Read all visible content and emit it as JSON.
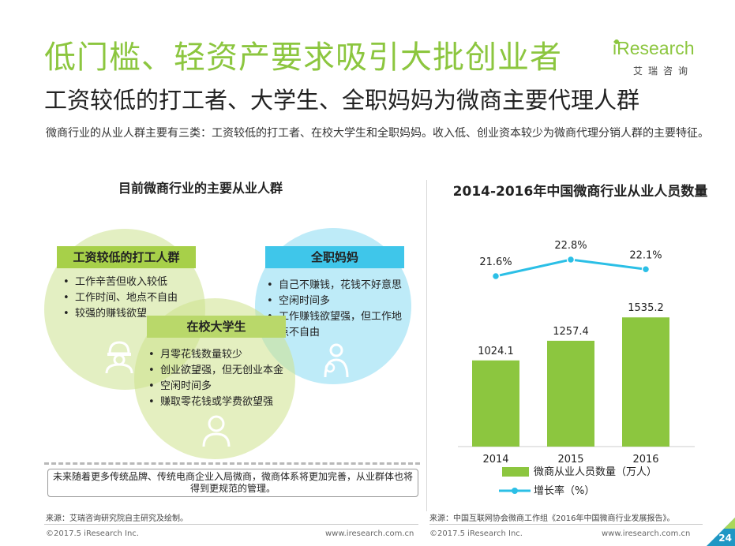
{
  "header": {
    "title": "低门槛、轻资产要求吸引大批创业者",
    "subtitle": "工资较低的打工者、大学生、全职妈妈为微商主要代理人群",
    "brand_en": "iResearch",
    "brand_cn": "艾瑞咨询"
  },
  "intro": "微商行业的从业人群主要有三类：工资较低的打工者、在校大学生和全职妈妈。收入低、创业资本较少为微商代理分销人群的主要特征。",
  "left_panel": {
    "title": "目前微商行业的主要从业人群",
    "groups": [
      {
        "name": "工资较低的打工人群",
        "items": [
          "工作辛苦但收入较低",
          "工作时间、地点不自由",
          "较强的赚钱欲望"
        ],
        "icon": "worker-icon"
      },
      {
        "name": "全职妈妈",
        "items": [
          "自己不赚钱，花钱不好意思",
          "空闲时间多",
          "工作赚钱欲望强，但工作地点不自由"
        ],
        "icon": "mother-baby-icon"
      },
      {
        "name": "在校大学生",
        "items": [
          "月零花钱数量较少",
          "创业欲望强，但无创业本金",
          "空闲时间多",
          "赚取零花钱或学费欲望强"
        ],
        "icon": "student-icon"
      }
    ],
    "note": "未来随着更多传统品牌、传统电商企业入局微商，微商体系将更加完善，从业群体也将得到更规范的管理。",
    "source": "来源：艾瑞咨询研究院自主研究及绘制。"
  },
  "chart_data": {
    "type": "bar",
    "title": "2014-2016年中国微商行业从业人员数量",
    "categories": [
      "2014",
      "2015",
      "2016"
    ],
    "series": [
      {
        "name": "微商从业人员数量（万人）",
        "type": "bar",
        "values": [
          1024.1,
          1257.4,
          1535.2
        ],
        "labels": [
          "1024.1",
          "1257.4",
          "1535.2"
        ],
        "color": "#8cc63f"
      },
      {
        "name": "增长率（%）",
        "type": "line",
        "values": [
          21.6,
          22.8,
          22.1
        ],
        "labels": [
          "21.6%",
          "22.8%",
          "22.1%"
        ],
        "color": "#2bbfe6"
      }
    ],
    "bar_ylim": [
      0,
      1800
    ],
    "line_ylim": [
      20,
      24
    ],
    "grid": false,
    "legend_position": "bottom",
    "source": "来源：中国互联网协会微商工作组《2016年中国微商行业发展报告》。"
  },
  "footer": {
    "copyright_left": "©2017.5 iResearch Inc.",
    "url_left": "www.iresearch.com.cn",
    "copyright_right": "©2017.5 iResearch Inc.",
    "url_right": "www.iresearch.com.cn",
    "page_number": "24"
  },
  "colors": {
    "green": "#8cc63f",
    "blue": "#2bbfe6",
    "corner_dark": "#1f97c4",
    "corner_light": "#a9d85a"
  }
}
